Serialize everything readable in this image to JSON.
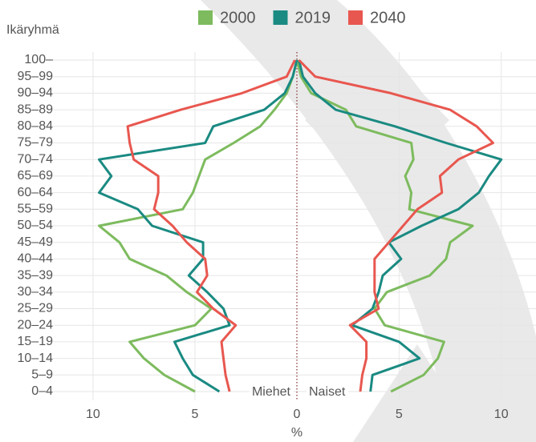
{
  "chart_data": {
    "type": "pyramid-line",
    "y_label": "Ikäryhmä",
    "x_label": "%",
    "categories": [
      "0–4",
      "5–9",
      "10–14",
      "15–19",
      "20–24",
      "25–29",
      "30–34",
      "35–39",
      "40–44",
      "45–49",
      "50–54",
      "55–59",
      "60–64",
      "65–69",
      "70–74",
      "75–79",
      "80–84",
      "85–89",
      "90–94",
      "95–99",
      "100–"
    ],
    "men": {
      "label": "Miehet",
      "xlim": [
        0,
        12.2
      ],
      "xticks": [
        10,
        5
      ]
    },
    "women": {
      "label": "Naiset",
      "xlim": [
        0,
        11.7
      ],
      "xticks": [
        0,
        5,
        10
      ]
    },
    "grid": true,
    "series": [
      {
        "name": "2000",
        "color": "#7dbb5e",
        "men": [
          5.0,
          6.5,
          7.5,
          8.2,
          5.0,
          4.2,
          5.4,
          6.4,
          8.2,
          8.7,
          9.7,
          5.6,
          5.1,
          4.8,
          4.5,
          3.1,
          1.8,
          1.1,
          0.5,
          0.2,
          0.0
        ],
        "women": [
          4.6,
          6.2,
          6.9,
          7.2,
          4.3,
          3.8,
          4.4,
          6.5,
          7.3,
          7.5,
          8.6,
          5.5,
          5.6,
          5.3,
          5.7,
          5.6,
          2.9,
          2.4,
          0.7,
          0.2,
          0.0
        ]
      },
      {
        "name": "2019",
        "color": "#1a8a82",
        "men": [
          3.8,
          5.1,
          5.6,
          6.0,
          3.3,
          3.6,
          4.4,
          5.3,
          4.6,
          4.6,
          7.1,
          7.8,
          9.7,
          9.1,
          9.7,
          4.5,
          4.1,
          1.6,
          0.6,
          0.2,
          0.0
        ],
        "women": [
          3.6,
          3.7,
          6.0,
          5.0,
          2.7,
          3.7,
          4.0,
          4.2,
          5.1,
          4.5,
          6.1,
          7.9,
          8.9,
          9.4,
          10.0,
          7.3,
          4.8,
          1.9,
          0.9,
          0.3,
          0.1
        ]
      },
      {
        "name": "2040",
        "color": "#e8574f",
        "men": [
          3.3,
          3.5,
          3.6,
          3.7,
          3.0,
          4.1,
          4.9,
          4.4,
          4.5,
          5.4,
          6.1,
          7.0,
          6.8,
          6.8,
          8.0,
          8.2,
          8.3,
          5.7,
          2.7,
          0.5,
          0.1
        ],
        "women": [
          3.1,
          3.2,
          3.4,
          3.4,
          2.6,
          4.0,
          3.8,
          3.8,
          3.8,
          4.5,
          5.2,
          5.9,
          7.1,
          7.0,
          7.9,
          9.6,
          8.8,
          7.5,
          4.6,
          0.9,
          0.1
        ]
      }
    ]
  }
}
